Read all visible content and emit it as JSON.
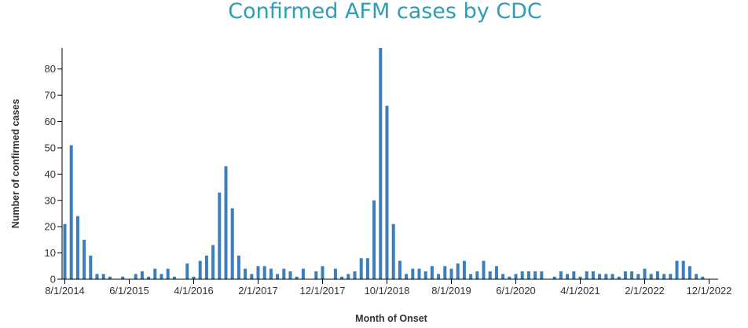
{
  "chart_data": {
    "type": "bar",
    "title": "Confirmed AFM cases by CDC",
    "xlabel": "Month of Onset",
    "ylabel": "Number of confirmed cases",
    "ylim": [
      0,
      88
    ],
    "yticks": [
      0,
      10,
      20,
      30,
      40,
      50,
      60,
      70,
      80
    ],
    "xtick_labels": [
      "8/1/2014",
      "6/1/2015",
      "4/1/2016",
      "2/1/2017",
      "12/1/2017",
      "10/1/2018",
      "8/1/2019",
      "6/1/2020",
      "4/1/2021",
      "2/1/2022",
      "12/1/2022"
    ],
    "grid": false,
    "legend": "none",
    "colors": {
      "bar": "#3a7ebd",
      "title": "#2e9db5",
      "axis": "#000000",
      "text": "#333333"
    },
    "categories": [
      "2014-08",
      "2014-09",
      "2014-10",
      "2014-11",
      "2014-12",
      "2015-01",
      "2015-02",
      "2015-03",
      "2015-04",
      "2015-05",
      "2015-06",
      "2015-07",
      "2015-08",
      "2015-09",
      "2015-10",
      "2015-11",
      "2015-12",
      "2016-01",
      "2016-02",
      "2016-03",
      "2016-04",
      "2016-05",
      "2016-06",
      "2016-07",
      "2016-08",
      "2016-09",
      "2016-10",
      "2016-11",
      "2016-12",
      "2017-01",
      "2017-02",
      "2017-03",
      "2017-04",
      "2017-05",
      "2017-06",
      "2017-07",
      "2017-08",
      "2017-09",
      "2017-10",
      "2017-11",
      "2017-12",
      "2018-01",
      "2018-02",
      "2018-03",
      "2018-04",
      "2018-05",
      "2018-06",
      "2018-07",
      "2018-08",
      "2018-09",
      "2018-10",
      "2018-11",
      "2018-12",
      "2019-01",
      "2019-02",
      "2019-03",
      "2019-04",
      "2019-05",
      "2019-06",
      "2019-07",
      "2019-08",
      "2019-09",
      "2019-10",
      "2019-11",
      "2019-12",
      "2020-01",
      "2020-02",
      "2020-03",
      "2020-04",
      "2020-05",
      "2020-06",
      "2020-07",
      "2020-08",
      "2020-09",
      "2020-10",
      "2020-11",
      "2020-12",
      "2021-01",
      "2021-02",
      "2021-03",
      "2021-04",
      "2021-05",
      "2021-06",
      "2021-07",
      "2021-08",
      "2021-09",
      "2021-10",
      "2021-11",
      "2021-12",
      "2022-01",
      "2022-02",
      "2022-03",
      "2022-04",
      "2022-05",
      "2022-06",
      "2022-07",
      "2022-08",
      "2022-09",
      "2022-10",
      "2022-11",
      "2022-12"
    ],
    "values": [
      21,
      51,
      24,
      15,
      9,
      2,
      2,
      1,
      0,
      1,
      0,
      2,
      3,
      1,
      4,
      2,
      4,
      1,
      0,
      6,
      1,
      7,
      9,
      13,
      33,
      43,
      27,
      9,
      4,
      2,
      5,
      5,
      4,
      2,
      4,
      3,
      1,
      4,
      0,
      3,
      5,
      0,
      4,
      1,
      2,
      3,
      8,
      8,
      30,
      88,
      66,
      21,
      7,
      2,
      4,
      4,
      3,
      5,
      2,
      5,
      4,
      6,
      7,
      2,
      3,
      7,
      3,
      5,
      2,
      1,
      2,
      3,
      3,
      3,
      3,
      0,
      1,
      3,
      2,
      3,
      1,
      3,
      3,
      2,
      2,
      2,
      1,
      3,
      3,
      2,
      4,
      2,
      3,
      2,
      2,
      7,
      7,
      5,
      2,
      1,
      0
    ]
  }
}
